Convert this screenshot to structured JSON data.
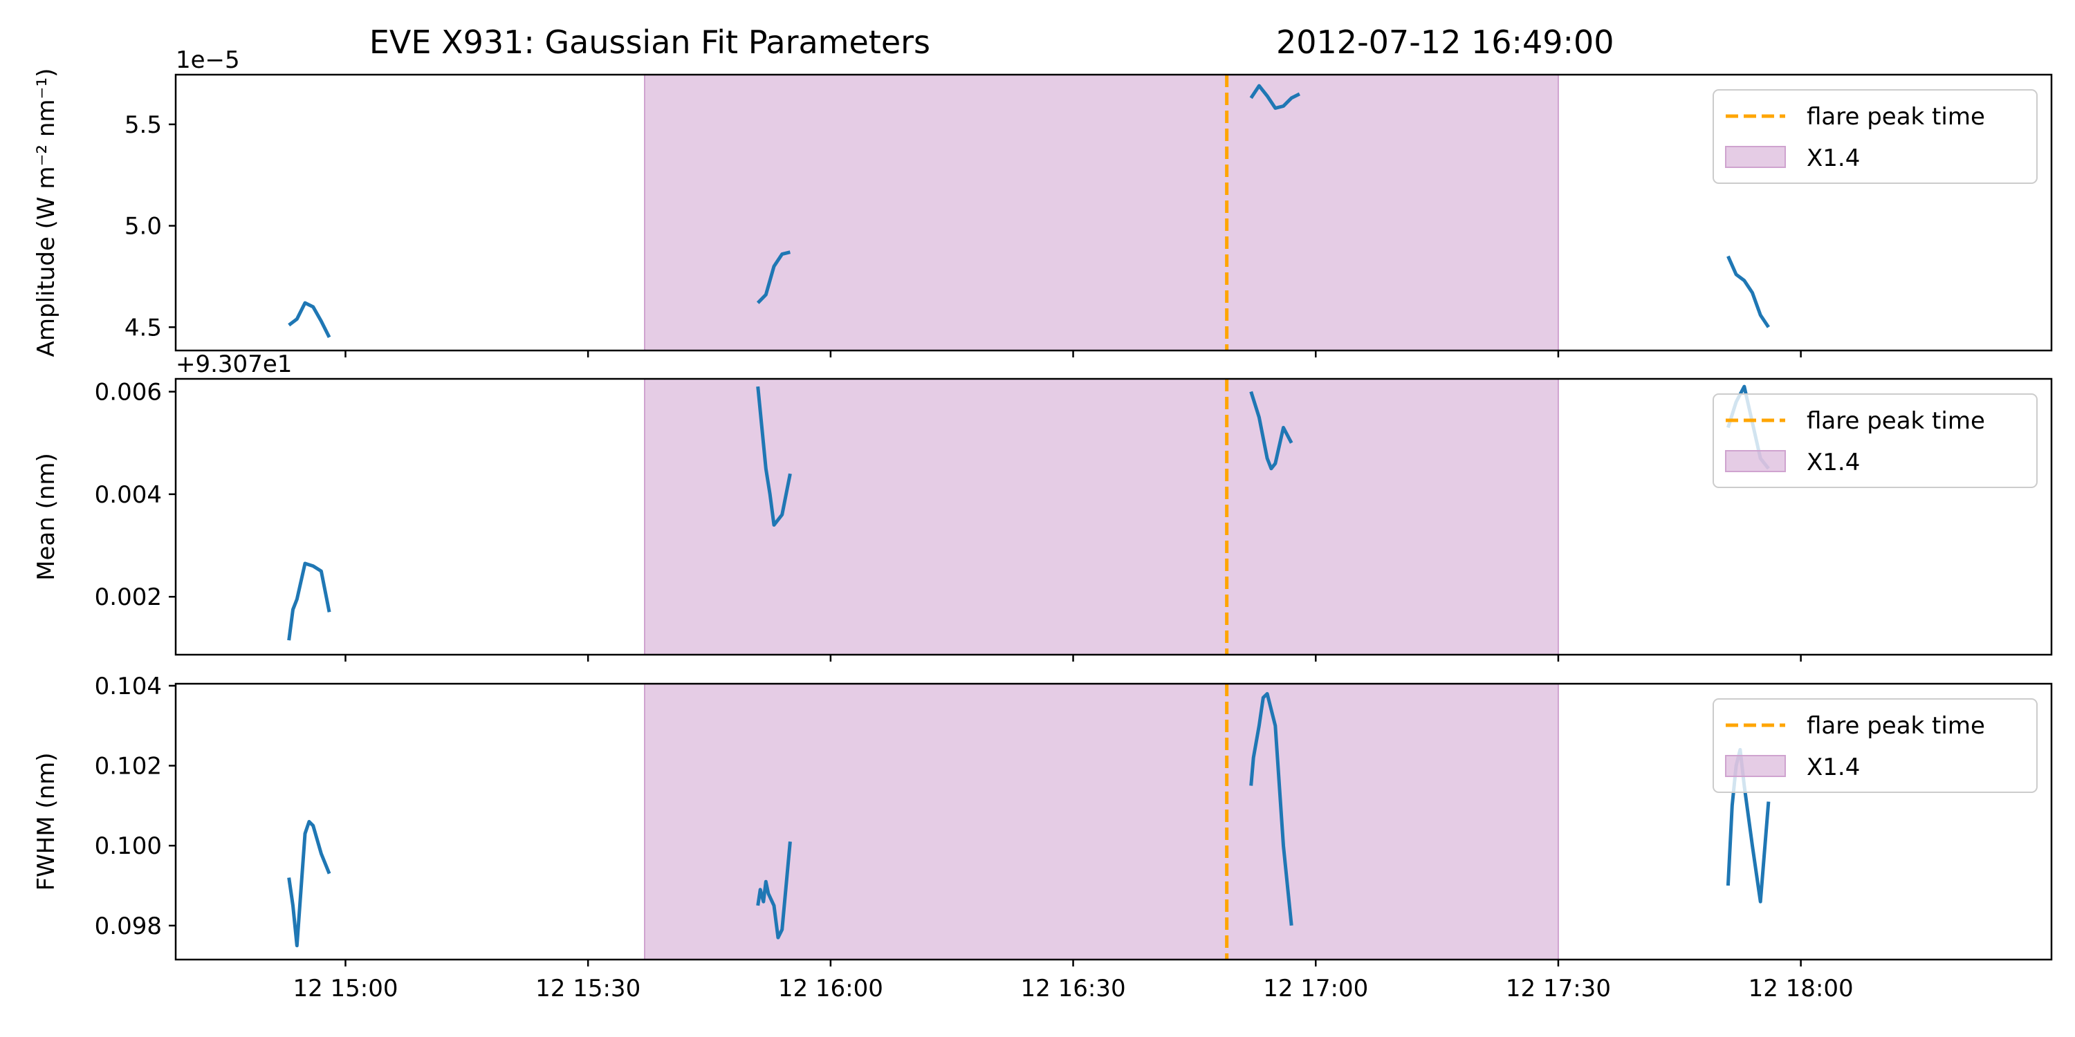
{
  "figure": {
    "title": "EVE X931: Gaussian Fit Parameters",
    "timestamp": "2012-07-12 16:49:00"
  },
  "chart_data": [
    {
      "type": "line",
      "ylabel": "Amplitude (W m⁻² nm⁻¹)",
      "offset_label": "1e−5",
      "xlim": [
        "2012-07-12T14:39",
        "2012-07-12T18:31"
      ],
      "ylim": [
        4.385,
        5.745
      ],
      "yticks": [
        4.5,
        5.0,
        5.5
      ],
      "ytick_labels": [
        "4.5",
        "5.0",
        "5.5"
      ],
      "xticks": [
        "2012-07-12T15:00",
        "2012-07-12T15:30",
        "2012-07-12T16:00",
        "2012-07-12T16:30",
        "2012-07-12T17:00",
        "2012-07-12T17:30",
        "2012-07-12T18:00"
      ],
      "xtick_labels": [
        "",
        "",
        "",
        "",
        "",
        "",
        ""
      ],
      "span": {
        "start": "2012-07-12T15:37",
        "end": "2012-07-12T17:30",
        "color": "#cfa3cf",
        "label": "X1.4"
      },
      "vline": {
        "x": "2012-07-12T16:49",
        "color": "#ffa500",
        "label": "flare peak time"
      },
      "legend": {
        "position": "upper right",
        "entries": [
          "flare peak time",
          "X1.4"
        ]
      },
      "segments": [
        {
          "x": [
            "14:53",
            "14:54",
            "14:55",
            "14:56",
            "14:57",
            "14:58"
          ],
          "y": [
            4.51,
            4.54,
            4.62,
            4.6,
            4.53,
            4.45
          ]
        },
        {
          "x": [
            "15:51",
            "15:52",
            "15:53",
            "15:54",
            "15:55"
          ],
          "y": [
            4.62,
            4.66,
            4.8,
            4.86,
            4.87
          ]
        },
        {
          "x": [
            "16:52",
            "16:53",
            "16:54",
            "16:55",
            "16:56",
            "16:57",
            "16:58"
          ],
          "y": [
            5.63,
            5.69,
            5.64,
            5.58,
            5.59,
            5.63,
            5.65
          ]
        },
        {
          "x": [
            "17:51",
            "17:52",
            "17:53",
            "17:54",
            "17:55",
            "17:56"
          ],
          "y": [
            4.85,
            4.76,
            4.73,
            4.67,
            4.56,
            4.5
          ]
        }
      ]
    },
    {
      "type": "line",
      "ylabel": "Mean (nm)",
      "offset_label": "+9.307e1",
      "xlim": [
        "2012-07-12T14:39",
        "2012-07-12T18:31"
      ],
      "ylim": [
        0.00087,
        0.00625
      ],
      "yticks": [
        0.002,
        0.004,
        0.006
      ],
      "ytick_labels": [
        "0.002",
        "0.004",
        "0.006"
      ],
      "xticks": [
        "2012-07-12T15:00",
        "2012-07-12T15:30",
        "2012-07-12T16:00",
        "2012-07-12T16:30",
        "2012-07-12T17:00",
        "2012-07-12T17:30",
        "2012-07-12T18:00"
      ],
      "xtick_labels": [
        "",
        "",
        "",
        "",
        "",
        "",
        ""
      ],
      "span": {
        "start": "2012-07-12T15:37",
        "end": "2012-07-12T17:30",
        "color": "#cfa3cf",
        "label": "X1.4"
      },
      "vline": {
        "x": "2012-07-12T16:49",
        "color": "#ffa500",
        "label": "flare peak time"
      },
      "legend": {
        "position": "upper right",
        "entries": [
          "flare peak time",
          "X1.4"
        ]
      },
      "segments": [
        {
          "x": [
            "14:53",
            "14:53.5",
            "14:54",
            "14:55",
            "14:56",
            "14:57",
            "14:58"
          ],
          "y": [
            0.00115,
            0.00175,
            0.00195,
            0.00265,
            0.0026,
            0.0025,
            0.0017
          ]
        },
        {
          "x": [
            "15:51",
            "15:52",
            "15:52.5",
            "15:53",
            "15:54",
            "15:55"
          ],
          "y": [
            0.0061,
            0.0045,
            0.004,
            0.0034,
            0.0036,
            0.0044
          ]
        },
        {
          "x": [
            "16:52",
            "16:53",
            "16:54",
            "16:54.5",
            "16:55",
            "16:56",
            "16:57"
          ],
          "y": [
            0.006,
            0.0055,
            0.0047,
            0.0045,
            0.0046,
            0.0053,
            0.005
          ]
        },
        {
          "x": [
            "17:51",
            "17:52",
            "17:53",
            "17:54",
            "17:55",
            "17:56"
          ],
          "y": [
            0.0053,
            0.0058,
            0.0061,
            0.0054,
            0.0047,
            0.0045
          ]
        }
      ]
    },
    {
      "type": "line",
      "ylabel": "FWHM (nm)",
      "offset_label": "",
      "xlim": [
        "2012-07-12T14:39",
        "2012-07-12T18:31"
      ],
      "ylim": [
        0.09715,
        0.10405
      ],
      "yticks": [
        0.098,
        0.1,
        0.102,
        0.104
      ],
      "ytick_labels": [
        "0.098",
        "0.100",
        "0.102",
        "0.104"
      ],
      "xticks": [
        "2012-07-12T15:00",
        "2012-07-12T15:30",
        "2012-07-12T16:00",
        "2012-07-12T16:30",
        "2012-07-12T17:00",
        "2012-07-12T17:30",
        "2012-07-12T18:00"
      ],
      "xtick_labels": [
        "12 15:00",
        "12 15:30",
        "12 16:00",
        "12 16:30",
        "12 17:00",
        "12 17:30",
        "12 18:00"
      ],
      "span": {
        "start": "2012-07-12T15:37",
        "end": "2012-07-12T17:30",
        "color": "#cfa3cf",
        "label": "X1.4"
      },
      "vline": {
        "x": "2012-07-12T16:49",
        "color": "#ffa500",
        "label": "flare peak time"
      },
      "legend": {
        "position": "upper right",
        "entries": [
          "flare peak time",
          "X1.4"
        ]
      },
      "segments": [
        {
          "x": [
            "14:53",
            "14:53.5",
            "14:54",
            "14:55",
            "14:55.5",
            "14:56",
            "14:57",
            "14:58"
          ],
          "y": [
            0.0992,
            0.0985,
            0.0975,
            0.1003,
            0.1006,
            0.1005,
            0.0998,
            0.0993
          ]
        },
        {
          "x": [
            "15:51",
            "15:51.3",
            "15:51.7",
            "15:52",
            "15:52.3",
            "15:53",
            "15:53.5",
            "15:54",
            "15:55"
          ],
          "y": [
            0.0985,
            0.0989,
            0.0986,
            0.0991,
            0.0988,
            0.0985,
            0.0977,
            0.0979,
            0.1001
          ]
        },
        {
          "x": [
            "16:52",
            "16:52.3",
            "16:53",
            "16:53.5",
            "16:54",
            "16:55",
            "16:56",
            "16:57"
          ],
          "y": [
            0.1015,
            0.1022,
            0.103,
            0.1037,
            0.1038,
            0.103,
            0.1,
            0.098
          ]
        },
        {
          "x": [
            "17:51",
            "17:51.5",
            "17:52",
            "17:52.5",
            "17:53",
            "17:54",
            "17:55",
            "17:56"
          ],
          "y": [
            0.099,
            0.101,
            0.102,
            0.1024,
            0.1015,
            0.1,
            0.0986,
            0.1011
          ]
        }
      ]
    }
  ]
}
